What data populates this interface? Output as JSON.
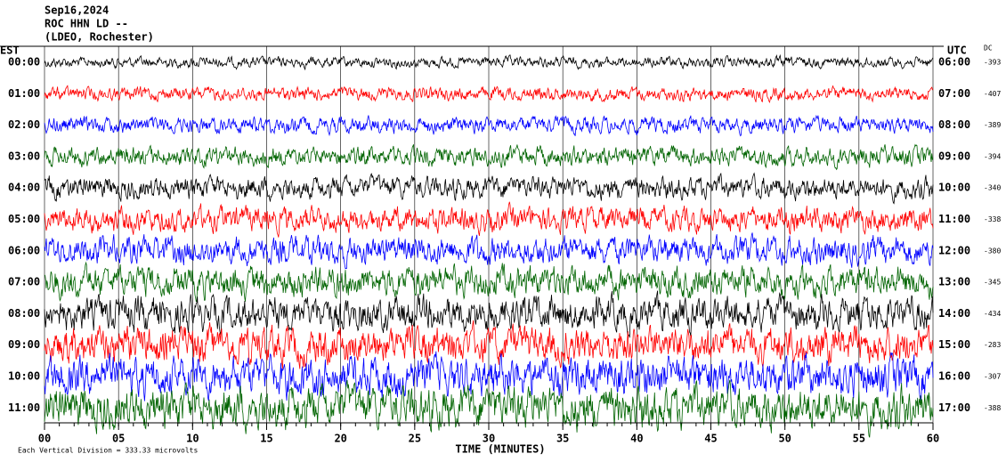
{
  "chart_data": {
    "type": "helicorder",
    "title": "Sep16,2024",
    "subtitle": "ROC HHN LD --",
    "station": "(LDEO, Rochester)",
    "left_axis_label": "EST",
    "right_axis_label": "UTC",
    "dc_label": "DC",
    "xlabel": "TIME (MINUTES)",
    "footnote": "Each Vertical Division = 333.33 microvolts",
    "xlim": [
      0,
      60
    ],
    "xticks": [
      {
        "value": 0,
        "label": "00"
      },
      {
        "value": 5,
        "label": "05"
      },
      {
        "value": 10,
        "label": "10"
      },
      {
        "value": 15,
        "label": "15"
      },
      {
        "value": 20,
        "label": "20"
      },
      {
        "value": 25,
        "label": "25"
      },
      {
        "value": 30,
        "label": "30"
      },
      {
        "value": 35,
        "label": "35"
      },
      {
        "value": 40,
        "label": "40"
      },
      {
        "value": 45,
        "label": "45"
      },
      {
        "value": 50,
        "label": "50"
      },
      {
        "value": 55,
        "label": "55"
      },
      {
        "value": 60,
        "label": "60"
      }
    ],
    "grid": true,
    "rows": [
      {
        "est": "00:00",
        "utc": "06:00",
        "dc": -393,
        "color": "#000000"
      },
      {
        "est": "01:00",
        "utc": "07:00",
        "dc": -407,
        "color": "#ff0000"
      },
      {
        "est": "02:00",
        "utc": "08:00",
        "dc": -389,
        "color": "#0000ff"
      },
      {
        "est": "03:00",
        "utc": "09:00",
        "dc": -394,
        "color": "#006400"
      },
      {
        "est": "04:00",
        "utc": "10:00",
        "dc": -340,
        "color": "#000000"
      },
      {
        "est": "05:00",
        "utc": "11:00",
        "dc": -338,
        "color": "#ff0000"
      },
      {
        "est": "06:00",
        "utc": "12:00",
        "dc": -380,
        "color": "#0000ff"
      },
      {
        "est": "07:00",
        "utc": "13:00",
        "dc": -345,
        "color": "#006400"
      },
      {
        "est": "08:00",
        "utc": "14:00",
        "dc": -434,
        "color": "#000000"
      },
      {
        "est": "09:00",
        "utc": "15:00",
        "dc": -283,
        "color": "#ff0000"
      },
      {
        "est": "10:00",
        "utc": "16:00",
        "dc": -307,
        "color": "#0000ff"
      },
      {
        "est": "11:00",
        "utc": "17:00",
        "dc": -388,
        "color": "#006400"
      }
    ]
  }
}
